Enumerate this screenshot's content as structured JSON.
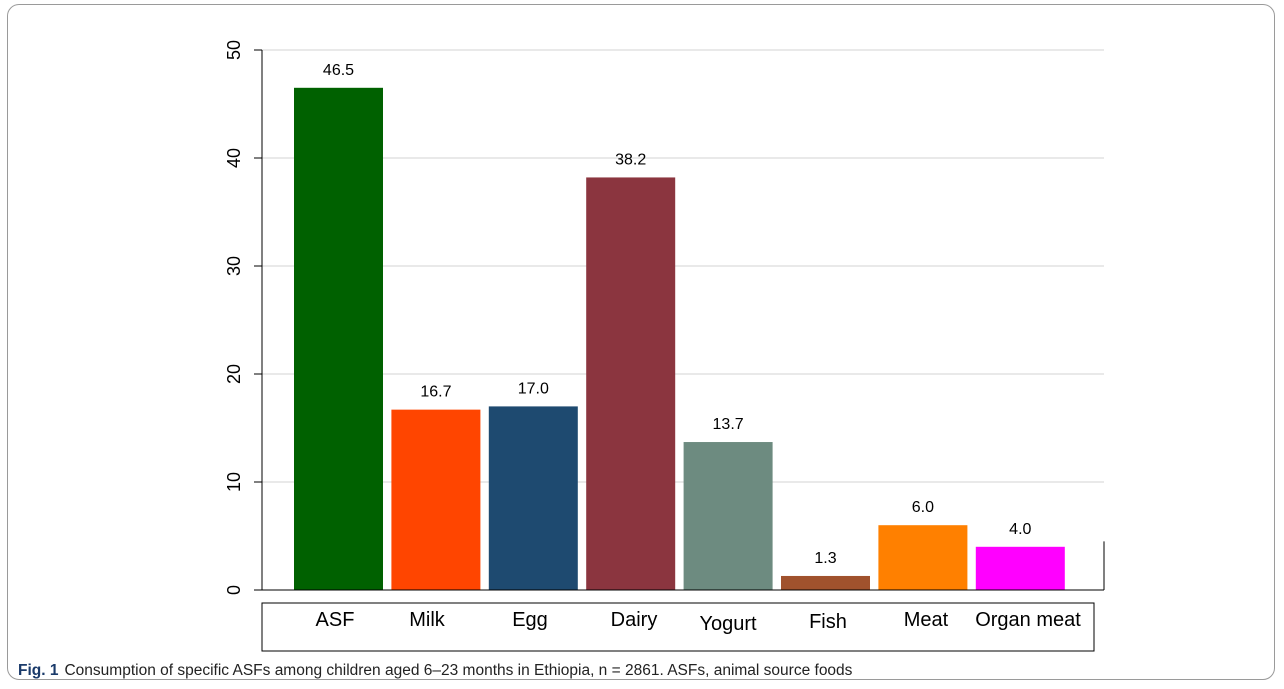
{
  "chart_data": {
    "type": "bar",
    "categories": [
      "ASF",
      "Milk",
      "Egg",
      "Dairy",
      "Yogurt",
      "Fish",
      "Meat",
      "Organ meat"
    ],
    "values": [
      46.5,
      16.7,
      17.0,
      38.2,
      13.7,
      1.3,
      6.0,
      4.0
    ],
    "data_labels": [
      "46.5",
      "16.7",
      "17.0",
      "38.2",
      "13.7",
      "1.3",
      "6.0",
      "4.0"
    ],
    "colors": [
      "#006100",
      "#ff4500",
      "#1e4a70",
      "#8b353f",
      "#6d8b80",
      "#a0522d",
      "#ff8000",
      "#ff00ff"
    ],
    "ylim": [
      0,
      50
    ],
    "yticks": [
      0,
      10,
      20,
      30,
      40,
      50
    ],
    "ytick_labels": [
      "0",
      "10",
      "20",
      "30",
      "40",
      "50"
    ],
    "grid": true,
    "legend": "categories listed in a bordered box below the plot"
  },
  "caption": {
    "label": "Fig. 1",
    "text": "Consumption of specific ASFs among children aged 6–23 months in Ethiopia, n = 2861. ASFs, animal source foods"
  }
}
